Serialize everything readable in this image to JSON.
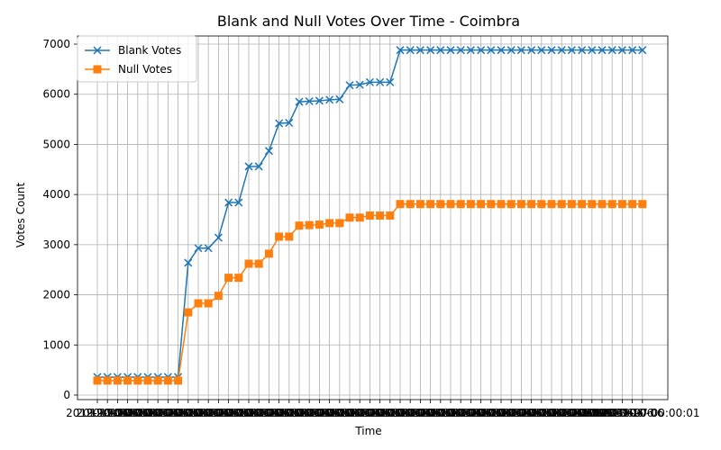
{
  "chart_data": {
    "type": "line",
    "title": "Blank and Null Votes Over Time - Coimbra",
    "xlabel": "Time",
    "ylabel": "Votes Count",
    "ylim": [
      0,
      7000
    ],
    "yticks": [
      0,
      1000,
      2000,
      3000,
      4000,
      5000,
      6000,
      7000
    ],
    "grid": true,
    "legend_position": "top-left",
    "x_tick_text": "2019-10-06",
    "x_tick_text_last": "2019-10-07 00:00:01",
    "point_count": 55,
    "series": [
      {
        "name": "Blank Votes",
        "color": "#1f77b4",
        "marker": "x",
        "values": [
          360,
          360,
          360,
          360,
          360,
          360,
          360,
          360,
          360,
          2640,
          2930,
          2930,
          3140,
          3840,
          3840,
          4560,
          4560,
          4870,
          5420,
          5430,
          5850,
          5860,
          5870,
          5890,
          5900,
          6180,
          6190,
          6240,
          6240,
          6240,
          6880,
          6880,
          6880,
          6880,
          6880,
          6880,
          6880,
          6880,
          6880,
          6880,
          6880,
          6880,
          6880,
          6880,
          6880,
          6880,
          6880,
          6880,
          6880,
          6880,
          6880,
          6880,
          6880,
          6880,
          6880
        ]
      },
      {
        "name": "Null Votes",
        "color": "#ff7f0e",
        "marker": "s",
        "values": [
          290,
          290,
          290,
          290,
          290,
          290,
          290,
          290,
          290,
          1650,
          1830,
          1830,
          1980,
          2340,
          2340,
          2620,
          2620,
          2820,
          3160,
          3160,
          3380,
          3390,
          3400,
          3430,
          3430,
          3540,
          3540,
          3580,
          3580,
          3580,
          3810,
          3810,
          3810,
          3810,
          3810,
          3810,
          3810,
          3810,
          3810,
          3810,
          3810,
          3810,
          3810,
          3810,
          3810,
          3810,
          3810,
          3810,
          3810,
          3810,
          3810,
          3810,
          3810,
          3810,
          3810
        ]
      }
    ]
  }
}
